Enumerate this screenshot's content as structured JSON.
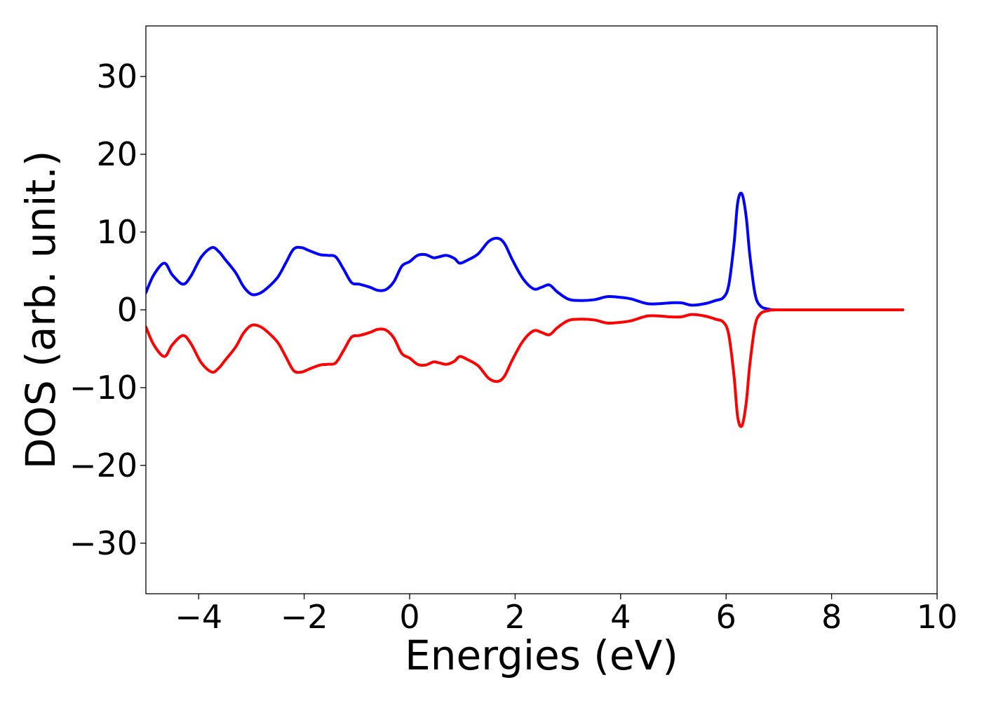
{
  "chart_data": {
    "type": "line",
    "title": "",
    "xlabel": "Energies (eV)",
    "ylabel": "DOS (arb. unit.)",
    "xlim": [
      -5,
      10
    ],
    "ylim": [
      -36.5,
      36.5
    ],
    "xticks": [
      -4,
      -2,
      0,
      2,
      4,
      6,
      8,
      10
    ],
    "xtick_labels": [
      "−4",
      "−2",
      "0",
      "2",
      "4",
      "6",
      "8",
      "10"
    ],
    "yticks": [
      30,
      20,
      10,
      0,
      -10,
      -20,
      -30
    ],
    "ytick_labels": [
      "30",
      "20",
      "10",
      "0",
      "−10",
      "−20",
      "−30"
    ],
    "grid": false,
    "legend": "none",
    "series": [
      {
        "color": "#0000ff",
        "x": [
          -5.0,
          -4.85,
          -4.65,
          -4.5,
          -4.3,
          -4.15,
          -3.95,
          -3.75,
          -3.62,
          -3.5,
          -3.3,
          -3.15,
          -3.0,
          -2.85,
          -2.7,
          -2.5,
          -2.35,
          -2.2,
          -2.05,
          -1.9,
          -1.7,
          -1.55,
          -1.4,
          -1.25,
          -1.1,
          -0.95,
          -0.75,
          -0.6,
          -0.45,
          -0.3,
          -0.15,
          0.0,
          0.15,
          0.3,
          0.45,
          0.55,
          0.7,
          0.85,
          0.95,
          1.1,
          1.3,
          1.5,
          1.67,
          1.8,
          1.95,
          2.15,
          2.35,
          2.5,
          2.65,
          2.8,
          3.0,
          3.2,
          3.5,
          3.75,
          4.0,
          4.2,
          4.5,
          4.75,
          4.95,
          5.15,
          5.35,
          5.6,
          5.8,
          5.95,
          6.05,
          6.15,
          6.22,
          6.3,
          6.38,
          6.45,
          6.55,
          6.65,
          6.8,
          7.0,
          8.0,
          9.35
        ],
        "y": [
          2.2,
          4.5,
          6.0,
          4.5,
          3.3,
          4.3,
          6.8,
          8.0,
          7.5,
          6.5,
          4.8,
          3.0,
          2.0,
          2.1,
          2.8,
          4.2,
          6.0,
          7.8,
          8.0,
          7.6,
          7.1,
          7.0,
          6.8,
          5.2,
          3.5,
          3.3,
          2.9,
          2.5,
          2.6,
          3.6,
          5.6,
          6.2,
          7.0,
          7.1,
          6.7,
          6.8,
          7.0,
          6.6,
          6.0,
          6.4,
          7.2,
          8.8,
          9.2,
          8.5,
          6.4,
          4.0,
          2.7,
          2.9,
          3.2,
          2.3,
          1.4,
          1.2,
          1.3,
          1.7,
          1.6,
          1.4,
          0.8,
          0.8,
          0.9,
          0.9,
          0.6,
          0.8,
          1.2,
          1.6,
          3.2,
          8.5,
          13.8,
          14.9,
          12.0,
          7.0,
          2.0,
          0.5,
          0.1,
          0.0,
          0.0,
          0.0
        ]
      },
      {
        "color": "#ff0000",
        "x": [
          -5.0,
          -4.85,
          -4.65,
          -4.5,
          -4.3,
          -4.15,
          -3.95,
          -3.75,
          -3.62,
          -3.5,
          -3.3,
          -3.15,
          -3.0,
          -2.85,
          -2.7,
          -2.5,
          -2.35,
          -2.2,
          -2.05,
          -1.9,
          -1.7,
          -1.55,
          -1.4,
          -1.25,
          -1.1,
          -0.95,
          -0.75,
          -0.6,
          -0.45,
          -0.3,
          -0.15,
          0.0,
          0.15,
          0.3,
          0.45,
          0.55,
          0.7,
          0.85,
          0.95,
          1.1,
          1.3,
          1.5,
          1.67,
          1.8,
          1.95,
          2.15,
          2.35,
          2.5,
          2.65,
          2.8,
          3.0,
          3.2,
          3.5,
          3.75,
          4.0,
          4.2,
          4.5,
          4.75,
          4.95,
          5.15,
          5.35,
          5.6,
          5.8,
          5.95,
          6.05,
          6.15,
          6.22,
          6.3,
          6.38,
          6.45,
          6.55,
          6.65,
          6.8,
          7.0,
          8.0,
          9.35
        ],
        "y": [
          -2.2,
          -4.5,
          -6.0,
          -4.5,
          -3.3,
          -4.3,
          -6.8,
          -8.0,
          -7.5,
          -6.5,
          -4.8,
          -3.0,
          -2.0,
          -2.1,
          -2.8,
          -4.2,
          -6.0,
          -7.8,
          -8.0,
          -7.6,
          -7.1,
          -7.0,
          -6.8,
          -5.2,
          -3.5,
          -3.3,
          -2.9,
          -2.5,
          -2.6,
          -3.6,
          -5.6,
          -6.2,
          -7.0,
          -7.1,
          -6.7,
          -6.8,
          -7.0,
          -6.6,
          -6.0,
          -6.4,
          -7.2,
          -8.8,
          -9.2,
          -8.5,
          -6.4,
          -4.0,
          -2.7,
          -2.9,
          -3.2,
          -2.3,
          -1.4,
          -1.2,
          -1.3,
          -1.7,
          -1.6,
          -1.4,
          -0.8,
          -0.8,
          -0.9,
          -0.9,
          -0.6,
          -0.8,
          -1.2,
          -1.6,
          -3.2,
          -8.5,
          -13.8,
          -14.9,
          -12.0,
          -7.0,
          -2.0,
          -0.5,
          -0.1,
          0.0,
          0.0,
          0.0
        ]
      }
    ]
  }
}
